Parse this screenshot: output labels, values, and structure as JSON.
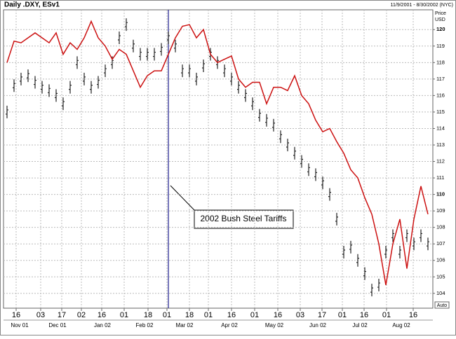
{
  "chart_data": {
    "type": "ohlc_line",
    "title": "Daily .DXY, ESv1",
    "date_range": "11/9/2001 - 8/30/2002 (NYC)",
    "y_axis_label": "Price",
    "y_axis_unit": "USD",
    "scale_mode": "Auto",
    "annotation": "2002 Bush Steel Tariffs",
    "event_line_x": 23,
    "event_line_color": "#1c1c8c",
    "grid": true,
    "xlim": [
      -0.5,
      60.7
    ],
    "xticks": [
      {
        "value": 1.3,
        "label": "16"
      },
      {
        "value": 4.8,
        "label": "03"
      },
      {
        "value": 7.8,
        "label": "17"
      },
      {
        "value": 10.6,
        "label": "02"
      },
      {
        "value": 13.5,
        "label": "16"
      },
      {
        "value": 16.7,
        "label": "01"
      },
      {
        "value": 20.1,
        "label": "18"
      },
      {
        "value": 22.8,
        "label": "01"
      },
      {
        "value": 26,
        "label": "18"
      },
      {
        "value": 28.7,
        "label": "01"
      },
      {
        "value": 32,
        "label": "16"
      },
      {
        "value": 35.3,
        "label": "01"
      },
      {
        "value": 38.6,
        "label": "16"
      },
      {
        "value": 41.8,
        "label": "03"
      },
      {
        "value": 44.9,
        "label": "17"
      },
      {
        "value": 47.8,
        "label": "01"
      },
      {
        "value": 50.9,
        "label": "16"
      },
      {
        "value": 54.1,
        "label": "01"
      },
      {
        "value": 57.9,
        "label": "16"
      }
    ],
    "month_ticks": [
      {
        "value": 1.8,
        "label": "Nov 01"
      },
      {
        "value": 7.2,
        "label": "Dec 01"
      },
      {
        "value": 13.6,
        "label": "Jan 02"
      },
      {
        "value": 19.6,
        "label": "Feb 02"
      },
      {
        "value": 25.3,
        "label": "Mar 02"
      },
      {
        "value": 31.7,
        "label": "Apr 02"
      },
      {
        "value": 38.1,
        "label": "May 02"
      },
      {
        "value": 44.3,
        "label": "Jun 02"
      },
      {
        "value": 50.3,
        "label": "Jul 02"
      },
      {
        "value": 56.2,
        "label": "Aug 02"
      }
    ],
    "ylim": [
      103.1,
      121.2
    ],
    "yticks": [
      104,
      105,
      106,
      107,
      108,
      109,
      110,
      111,
      112,
      113,
      114,
      115,
      116,
      117,
      118,
      119,
      120
    ],
    "bold_yticks": [
      110,
      120
    ],
    "series": [
      {
        "name": ".DXY",
        "style": "bars",
        "color": "#222222",
        "values": [
          115,
          116.6,
          117,
          117.2,
          116.8,
          116.5,
          116.3,
          116,
          115.5,
          116.5,
          118,
          117,
          116.5,
          116.8,
          117.5,
          118,
          119.5,
          120.3,
          119,
          118.5,
          118.5,
          118.5,
          118.8,
          119.5,
          119,
          117.5,
          117.5,
          117,
          117.8,
          118.5,
          118,
          117.5,
          117,
          116.5,
          116,
          115.5,
          114.8,
          114.5,
          114.2,
          113.5,
          113,
          112.5,
          112,
          111.5,
          111.2,
          110.7,
          110,
          108.5,
          106.5,
          106.8,
          106,
          105.2,
          104.2,
          104.5,
          106.5,
          107.5,
          106.5,
          107.5,
          107,
          107.5,
          107
        ]
      },
      {
        "name": "ESv1",
        "style": "line",
        "color": "#cc1111",
        "values": [
          118,
          119.3,
          119.2,
          119.5,
          119.8,
          119.5,
          119.2,
          119.8,
          118.5,
          119.2,
          118.8,
          119.5,
          120.5,
          119.5,
          119,
          118.2,
          118.8,
          118.5,
          117.5,
          116.5,
          117.2,
          117.5,
          117.5,
          118.5,
          119.5,
          120.2,
          120.3,
          119.5,
          120,
          118.5,
          118,
          118.2,
          118.4,
          117,
          116.5,
          116.8,
          116.8,
          115.5,
          116.5,
          116.5,
          116.3,
          117.2,
          116,
          115.5,
          114.5,
          113.8,
          114,
          113.2,
          112.5,
          111.5,
          111,
          109.8,
          108.8,
          107,
          104.5,
          107,
          108.5,
          105.5,
          108.5,
          110.5,
          108.8
        ]
      }
    ]
  }
}
